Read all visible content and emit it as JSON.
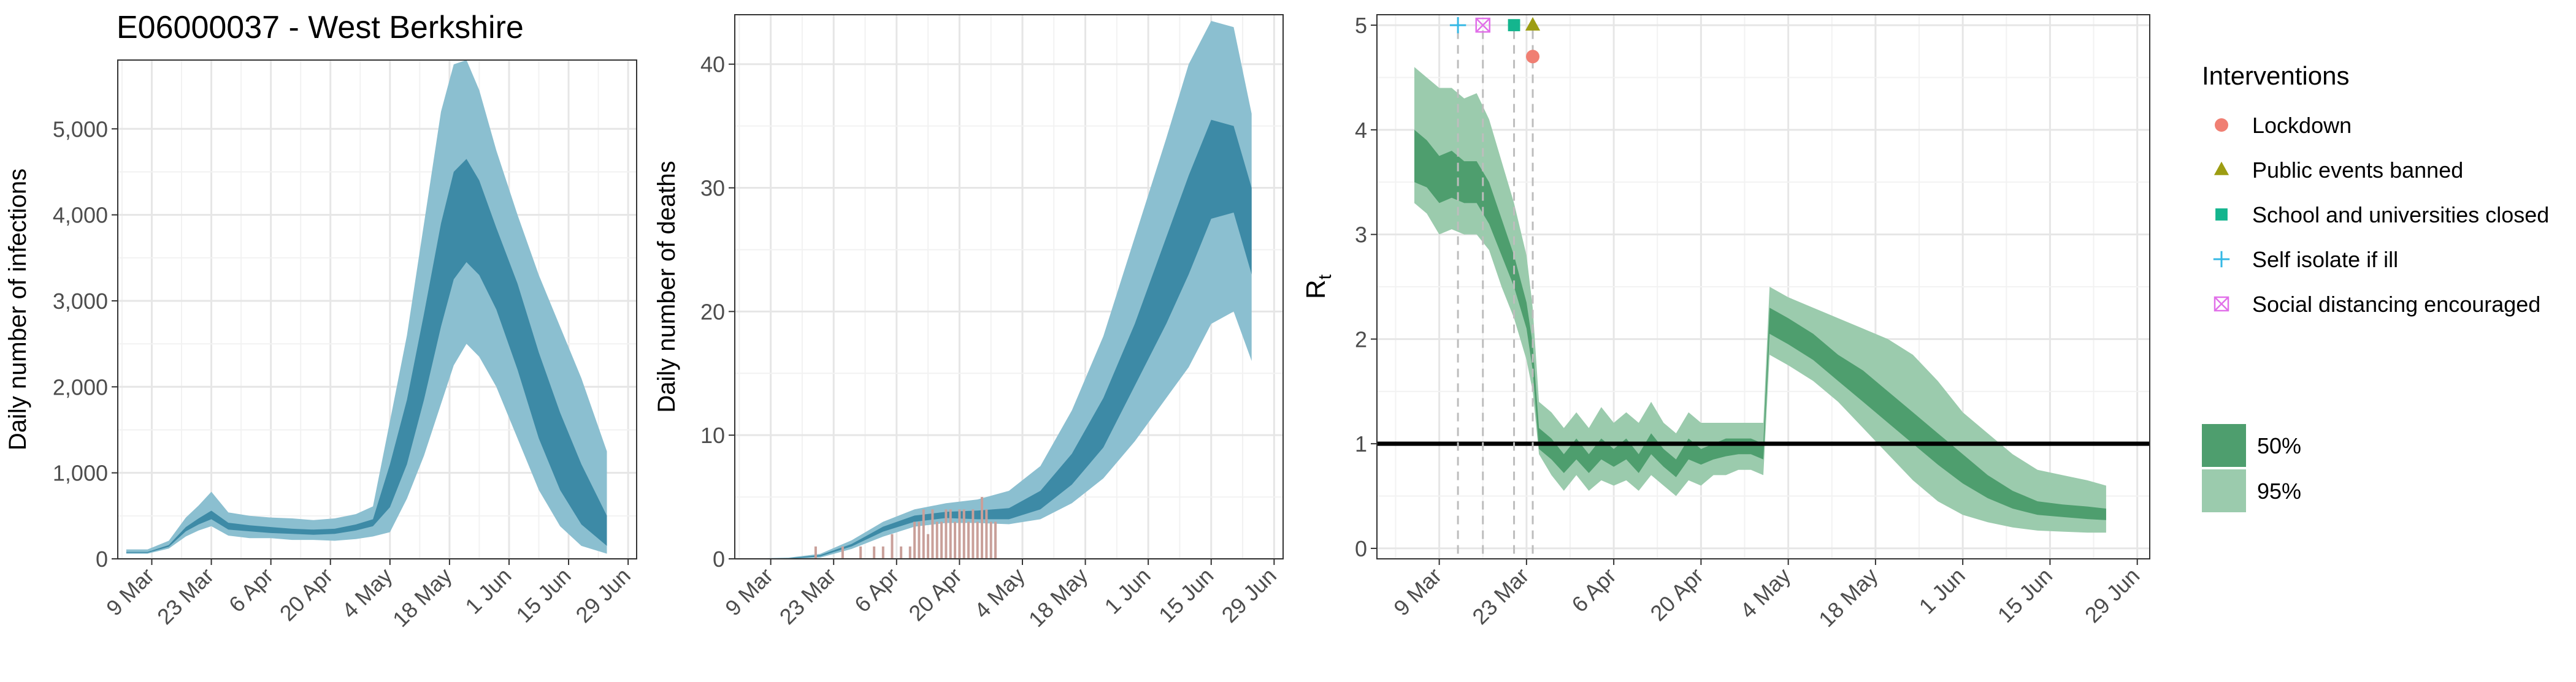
{
  "title": "E06000037 - West Berkshire",
  "colors": {
    "infections_95": "#8bbfd0",
    "infections_50": "#3d8aa6",
    "deaths_bars": "#c9a09a",
    "rt_95": "#9bcbad",
    "rt_50": "#4e9e6e",
    "lockdown": "#f07f73",
    "public_events": "#9d9d12",
    "schools": "#14b58e",
    "self_isolate": "#35b8e5",
    "social_distancing": "#e170e9"
  },
  "date_ticks": [
    "9 Mar",
    "23 Mar",
    "6 Apr",
    "20 Apr",
    "4 May",
    "18 May",
    "1 Jun",
    "15 Jun",
    "29 Jun"
  ],
  "legend": {
    "interventions_title": "Interventions",
    "interventions": [
      {
        "label": "Lockdown",
        "shape": "circle",
        "color": "#f07f73"
      },
      {
        "label": "Public events banned",
        "shape": "triangle",
        "color": "#9d9d12"
      },
      {
        "label": "School and universities closed",
        "shape": "square",
        "color": "#14b58e"
      },
      {
        "label": "Self isolate if ill",
        "shape": "plus",
        "color": "#35b8e5"
      },
      {
        "label": "Social distancing encouraged",
        "shape": "boxx",
        "color": "#e170e9"
      }
    ],
    "bands": [
      {
        "label": "50%",
        "color": "#4e9e6e"
      },
      {
        "label": "95%",
        "color": "#9bcbad"
      }
    ]
  },
  "chart_data": [
    {
      "type": "area",
      "ylabel": "Daily number of infections",
      "ylim": [
        0,
        5800
      ],
      "yticks": [
        0,
        1000,
        2000,
        3000,
        4000,
        5000
      ],
      "ytick_labels": [
        "0",
        "1,000",
        "2,000",
        "3,000",
        "4,000",
        "5,000"
      ],
      "x_start": "2020-03-03",
      "x_end": "2020-06-24",
      "grid": true,
      "series": [
        {
          "band": "95%",
          "x": [
            "2020-03-03",
            "2020-03-08",
            "2020-03-13",
            "2020-03-17",
            "2020-03-20",
            "2020-03-23",
            "2020-03-27",
            "2020-04-01",
            "2020-04-06",
            "2020-04-11",
            "2020-04-16",
            "2020-04-21",
            "2020-04-26",
            "2020-04-30",
            "2020-05-04",
            "2020-05-08",
            "2020-05-12",
            "2020-05-16",
            "2020-05-19",
            "2020-05-22",
            "2020-05-25",
            "2020-05-29",
            "2020-06-03",
            "2020-06-08",
            "2020-06-13",
            "2020-06-18",
            "2020-06-24"
          ],
          "upper": [
            110,
            110,
            210,
            480,
            620,
            780,
            540,
            500,
            480,
            470,
            450,
            470,
            520,
            610,
            1600,
            2600,
            3900,
            5200,
            5750,
            5800,
            5450,
            4750,
            4000,
            3300,
            2700,
            2100,
            1250
          ],
          "lower": [
            60,
            60,
            120,
            260,
            330,
            380,
            270,
            240,
            240,
            220,
            220,
            210,
            230,
            260,
            310,
            700,
            1200,
            1800,
            2250,
            2500,
            2350,
            2000,
            1400,
            800,
            380,
            150,
            60
          ]
        },
        {
          "band": "50%",
          "x": [
            "2020-03-03",
            "2020-03-08",
            "2020-03-13",
            "2020-03-17",
            "2020-03-20",
            "2020-03-23",
            "2020-03-27",
            "2020-04-01",
            "2020-04-06",
            "2020-04-11",
            "2020-04-16",
            "2020-04-21",
            "2020-04-26",
            "2020-04-30",
            "2020-05-04",
            "2020-05-08",
            "2020-05-12",
            "2020-05-16",
            "2020-05-19",
            "2020-05-22",
            "2020-05-25",
            "2020-05-29",
            "2020-06-03",
            "2020-06-08",
            "2020-06-13",
            "2020-06-18",
            "2020-06-24"
          ],
          "upper": [
            80,
            80,
            160,
            370,
            470,
            560,
            420,
            390,
            370,
            350,
            340,
            350,
            400,
            460,
            1100,
            1850,
            2850,
            3900,
            4500,
            4650,
            4400,
            3850,
            3200,
            2400,
            1700,
            1100,
            500
          ],
          "lower": [
            70,
            70,
            140,
            320,
            400,
            460,
            340,
            320,
            300,
            290,
            280,
            290,
            330,
            380,
            600,
            1100,
            1850,
            2700,
            3250,
            3450,
            3300,
            2900,
            2200,
            1400,
            800,
            400,
            150
          ]
        }
      ]
    },
    {
      "type": "area",
      "ylabel": "Daily number of deaths",
      "ylim": [
        0,
        44
      ],
      "yticks": [
        0,
        10,
        20,
        30,
        40
      ],
      "ytick_labels": [
        "0",
        "10",
        "20",
        "30",
        "40"
      ],
      "x_start": "2020-03-03",
      "x_end": "2020-06-24",
      "grid": true,
      "series": [
        {
          "band": "95%",
          "x": [
            "2020-03-03",
            "2020-03-13",
            "2020-03-20",
            "2020-03-27",
            "2020-04-03",
            "2020-04-10",
            "2020-04-17",
            "2020-04-24",
            "2020-05-01",
            "2020-05-08",
            "2020-05-15",
            "2020-05-22",
            "2020-05-29",
            "2020-06-05",
            "2020-06-10",
            "2020-06-15",
            "2020-06-20",
            "2020-06-24"
          ],
          "upper": [
            0,
            0.1,
            0.4,
            1.5,
            3.0,
            4.0,
            4.5,
            4.8,
            5.5,
            7.5,
            12,
            18,
            26,
            34,
            40,
            43.5,
            43,
            36
          ],
          "lower": [
            0,
            0,
            0.1,
            0.8,
            1.8,
            2.6,
            2.9,
            2.9,
            2.8,
            3.2,
            4.5,
            6.5,
            9.5,
            13,
            15.5,
            19,
            20,
            16
          ]
        },
        {
          "band": "50%",
          "x": [
            "2020-03-03",
            "2020-03-13",
            "2020-03-20",
            "2020-03-27",
            "2020-04-03",
            "2020-04-10",
            "2020-04-17",
            "2020-04-24",
            "2020-05-01",
            "2020-05-08",
            "2020-05-15",
            "2020-05-22",
            "2020-05-29",
            "2020-06-05",
            "2020-06-10",
            "2020-06-15",
            "2020-06-20",
            "2020-06-24"
          ],
          "upper": [
            0,
            0.05,
            0.3,
            1.2,
            2.6,
            3.5,
            3.8,
            3.9,
            4.1,
            5.5,
            8.5,
            13,
            19,
            26,
            31,
            35.5,
            35,
            30
          ],
          "lower": [
            0,
            0,
            0.2,
            1.0,
            2.2,
            3.0,
            3.3,
            3.2,
            3.2,
            4.0,
            6.0,
            9.0,
            14,
            19,
            23,
            27.5,
            28,
            23
          ]
        },
        {
          "name": "Observed deaths",
          "type": "bar",
          "x": [
            "2020-03-19",
            "2020-03-25",
            "2020-03-29",
            "2020-04-01",
            "2020-04-03",
            "2020-04-05",
            "2020-04-07",
            "2020-04-09",
            "2020-04-10",
            "2020-04-11",
            "2020-04-12",
            "2020-04-13",
            "2020-04-14",
            "2020-04-15",
            "2020-04-16",
            "2020-04-17",
            "2020-04-18",
            "2020-04-19",
            "2020-04-20",
            "2020-04-21",
            "2020-04-22",
            "2020-04-23",
            "2020-04-24",
            "2020-04-25",
            "2020-04-26",
            "2020-04-27",
            "2020-04-28"
          ],
          "values": [
            1,
            1,
            1,
            1,
            1,
            2,
            1,
            1,
            3,
            3,
            4,
            2,
            4,
            3,
            3,
            4,
            4,
            3,
            4,
            4,
            3,
            4,
            3,
            5,
            4,
            3,
            3
          ]
        }
      ]
    },
    {
      "type": "area",
      "ylabel": "R",
      "ylabel_subscript": "t",
      "ylim": [
        -0.1,
        5.1
      ],
      "yticks": [
        0,
        1,
        2,
        3,
        4,
        5
      ],
      "ytick_labels": [
        "0",
        "1",
        "2",
        "3",
        "4",
        "5"
      ],
      "x_start": "2020-03-03",
      "x_end": "2020-06-24",
      "grid": true,
      "reference_line": 1,
      "interventions": [
        {
          "label": "Self isolate if ill",
          "date": "2020-03-12",
          "marker_y": 5.0
        },
        {
          "label": "Social distancing encouraged",
          "date": "2020-03-16",
          "marker_y": 5.0
        },
        {
          "label": "School and universities closed",
          "date": "2020-03-21",
          "marker_y": 5.0
        },
        {
          "label": "Public events banned",
          "date": "2020-03-24",
          "marker_y": 5.0
        },
        {
          "label": "Lockdown",
          "date": "2020-03-24",
          "marker_y": 4.7
        }
      ],
      "series": [
        {
          "band": "95%",
          "x": [
            "2020-03-05",
            "2020-03-07",
            "2020-03-09",
            "2020-03-11",
            "2020-03-13",
            "2020-03-15",
            "2020-03-17",
            "2020-03-19",
            "2020-03-21",
            "2020-03-23",
            "2020-03-24",
            "2020-03-25",
            "2020-03-27",
            "2020-03-29",
            "2020-03-31",
            "2020-04-02",
            "2020-04-04",
            "2020-04-06",
            "2020-04-08",
            "2020-04-10",
            "2020-04-12",
            "2020-04-14",
            "2020-04-16",
            "2020-04-18",
            "2020-04-20",
            "2020-04-22",
            "2020-04-24",
            "2020-04-26",
            "2020-04-28",
            "2020-04-30",
            "2020-05-01",
            "2020-05-04",
            "2020-05-08",
            "2020-05-12",
            "2020-05-16",
            "2020-05-20",
            "2020-05-24",
            "2020-05-28",
            "2020-06-01",
            "2020-06-05",
            "2020-06-09",
            "2020-06-13",
            "2020-06-17",
            "2020-06-21",
            "2020-06-24"
          ],
          "upper": [
            4.6,
            4.5,
            4.4,
            4.4,
            4.3,
            4.35,
            4.1,
            3.7,
            3.3,
            2.8,
            2.3,
            1.4,
            1.3,
            1.15,
            1.3,
            1.15,
            1.35,
            1.2,
            1.3,
            1.2,
            1.4,
            1.2,
            1.1,
            1.3,
            1.2,
            1.2,
            1.2,
            1.2,
            1.2,
            1.2,
            2.5,
            2.4,
            2.3,
            2.2,
            2.1,
            2.0,
            1.85,
            1.6,
            1.3,
            1.1,
            0.9,
            0.75,
            0.7,
            0.65,
            0.6
          ],
          "lower": [
            3.3,
            3.2,
            3.0,
            3.05,
            3.0,
            3.0,
            2.85,
            2.5,
            2.2,
            1.8,
            1.5,
            0.9,
            0.7,
            0.55,
            0.7,
            0.55,
            0.65,
            0.6,
            0.65,
            0.55,
            0.7,
            0.6,
            0.5,
            0.65,
            0.6,
            0.7,
            0.7,
            0.75,
            0.75,
            0.7,
            1.85,
            1.75,
            1.6,
            1.4,
            1.15,
            0.9,
            0.65,
            0.45,
            0.32,
            0.25,
            0.2,
            0.17,
            0.16,
            0.15,
            0.15
          ]
        },
        {
          "band": "50%",
          "x": [
            "2020-03-05",
            "2020-03-07",
            "2020-03-09",
            "2020-03-11",
            "2020-03-13",
            "2020-03-15",
            "2020-03-17",
            "2020-03-19",
            "2020-03-21",
            "2020-03-23",
            "2020-03-24",
            "2020-03-25",
            "2020-03-27",
            "2020-03-29",
            "2020-03-31",
            "2020-04-02",
            "2020-04-04",
            "2020-04-06",
            "2020-04-08",
            "2020-04-10",
            "2020-04-12",
            "2020-04-14",
            "2020-04-16",
            "2020-04-18",
            "2020-04-20",
            "2020-04-22",
            "2020-04-24",
            "2020-04-26",
            "2020-04-28",
            "2020-04-30",
            "2020-05-01",
            "2020-05-04",
            "2020-05-08",
            "2020-05-12",
            "2020-05-16",
            "2020-05-20",
            "2020-05-24",
            "2020-05-28",
            "2020-06-01",
            "2020-06-05",
            "2020-06-09",
            "2020-06-13",
            "2020-06-17",
            "2020-06-21",
            "2020-06-24"
          ],
          "upper": [
            4.0,
            3.9,
            3.75,
            3.8,
            3.7,
            3.7,
            3.5,
            3.15,
            2.8,
            2.35,
            1.95,
            1.15,
            1.05,
            0.9,
            1.05,
            0.9,
            1.05,
            0.95,
            1.05,
            0.9,
            1.1,
            0.95,
            0.85,
            1.05,
            0.95,
            1.0,
            1.05,
            1.05,
            1.05,
            1.0,
            2.3,
            2.2,
            2.05,
            1.85,
            1.7,
            1.5,
            1.3,
            1.1,
            0.9,
            0.7,
            0.55,
            0.45,
            0.42,
            0.4,
            0.38
          ],
          "lower": [
            3.5,
            3.45,
            3.3,
            3.35,
            3.3,
            3.3,
            3.1,
            2.8,
            2.5,
            2.1,
            1.7,
            0.95,
            0.85,
            0.72,
            0.85,
            0.72,
            0.85,
            0.78,
            0.85,
            0.72,
            0.9,
            0.78,
            0.68,
            0.85,
            0.8,
            0.85,
            0.88,
            0.9,
            0.9,
            0.85,
            2.05,
            1.95,
            1.8,
            1.6,
            1.4,
            1.2,
            1.0,
            0.8,
            0.62,
            0.48,
            0.38,
            0.32,
            0.3,
            0.28,
            0.27
          ]
        }
      ]
    }
  ]
}
